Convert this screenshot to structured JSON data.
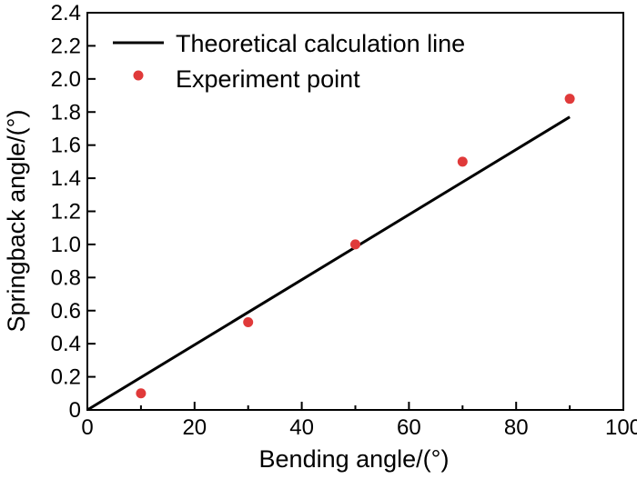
{
  "chart_data": {
    "type": "scatter",
    "title": "",
    "xlabel": "Bending angle/(°)",
    "ylabel": "Springback angle/(°)",
    "xlim": [
      0,
      100
    ],
    "ylim": [
      0,
      2.4
    ],
    "xticks": [
      0,
      20,
      40,
      60,
      80,
      100
    ],
    "yticks": [
      0,
      0.2,
      0.4,
      0.6,
      0.8,
      1.0,
      1.2,
      1.4,
      1.6,
      1.8,
      2.0,
      2.2,
      2.4
    ],
    "x_tick_labels": [
      "0",
      "20",
      "40",
      "60",
      "80",
      "100"
    ],
    "y_tick_labels": [
      "0",
      "0.2",
      "0.4",
      "0.6",
      "0.8",
      "1.0",
      "1.2",
      "1.4",
      "1.6",
      "1.8",
      "2.0",
      "2.2",
      "2.4"
    ],
    "grid": false,
    "legend_position": "top-left",
    "series": [
      {
        "name": "Theoretical calculation line",
        "kind": "line",
        "color": "#000000",
        "x": [
          0,
          90
        ],
        "y": [
          0,
          1.77
        ]
      },
      {
        "name": "Experiment point",
        "kind": "scatter",
        "color": "#e03a3a",
        "x": [
          10,
          30,
          50,
          70,
          90
        ],
        "y": [
          0.1,
          0.53,
          1.0,
          1.5,
          1.88
        ]
      }
    ]
  }
}
